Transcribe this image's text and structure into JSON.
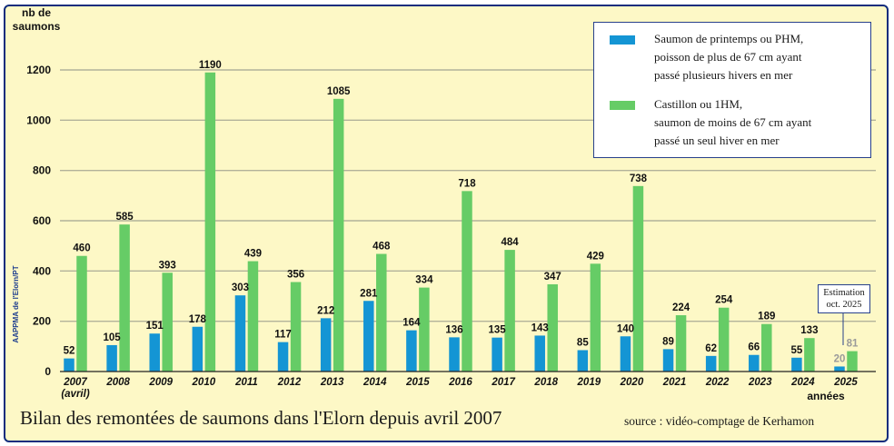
{
  "colors": {
    "frame_background": "#fdf8c6",
    "frame_border": "#0f2c7d",
    "series_phm": "#1495d4",
    "series_1hm": "#66cc66",
    "gridline": "#b2b29a",
    "estimate_value_text": "#9a9a9a"
  },
  "y_axis_title": "nb de\nsaumons",
  "x_axis_unit": "années",
  "caption": "Bilan des remontées de saumons dans l'Elorn depuis avril 2007",
  "source": "source : vidéo-comptage de Kerhamon",
  "watermark": "AAPPMA de l'Elorn/PT",
  "estimation_note": "Estimation\noct. 2025",
  "legend": [
    {
      "label": "Saumon de printemps ou PHM,\npoisson de plus de 67 cm ayant\npassé plusieurs hivers en mer",
      "color_key": "series_phm"
    },
    {
      "label": "Castillon ou 1HM,\nsaumon de moins de 67 cm ayant\npassé un seul hiver en mer",
      "color_key": "series_1hm"
    }
  ],
  "chart_data": {
    "type": "bar",
    "title": "Bilan des remontées de saumons dans l'Elorn depuis avril 2007",
    "xlabel": "années",
    "ylabel": "nb de saumons",
    "ylim": [
      0,
      1300
    ],
    "yticks": [
      0,
      200,
      400,
      600,
      800,
      1000,
      1200
    ],
    "grid": true,
    "legend_position": "top-right",
    "categories": [
      "2007\n(avril)",
      "2008",
      "2009",
      "2010",
      "2011",
      "2012",
      "2013",
      "2014",
      "2015",
      "2016",
      "2017",
      "2018",
      "2019",
      "2020",
      "2021",
      "2022",
      "2023",
      "2024",
      "2025"
    ],
    "estimated_categories": [
      "2025"
    ],
    "series": [
      {
        "name": "Saumon de printemps ou PHM",
        "color_key": "series_phm",
        "values": [
          52,
          105,
          151,
          178,
          303,
          117,
          212,
          281,
          164,
          136,
          135,
          143,
          85,
          140,
          89,
          62,
          66,
          55,
          20
        ]
      },
      {
        "name": "Castillon ou 1HM",
        "color_key": "series_1hm",
        "values": [
          460,
          585,
          393,
          1190,
          439,
          356,
          1085,
          468,
          334,
          718,
          484,
          347,
          429,
          738,
          224,
          254,
          189,
          133,
          81
        ]
      }
    ]
  }
}
